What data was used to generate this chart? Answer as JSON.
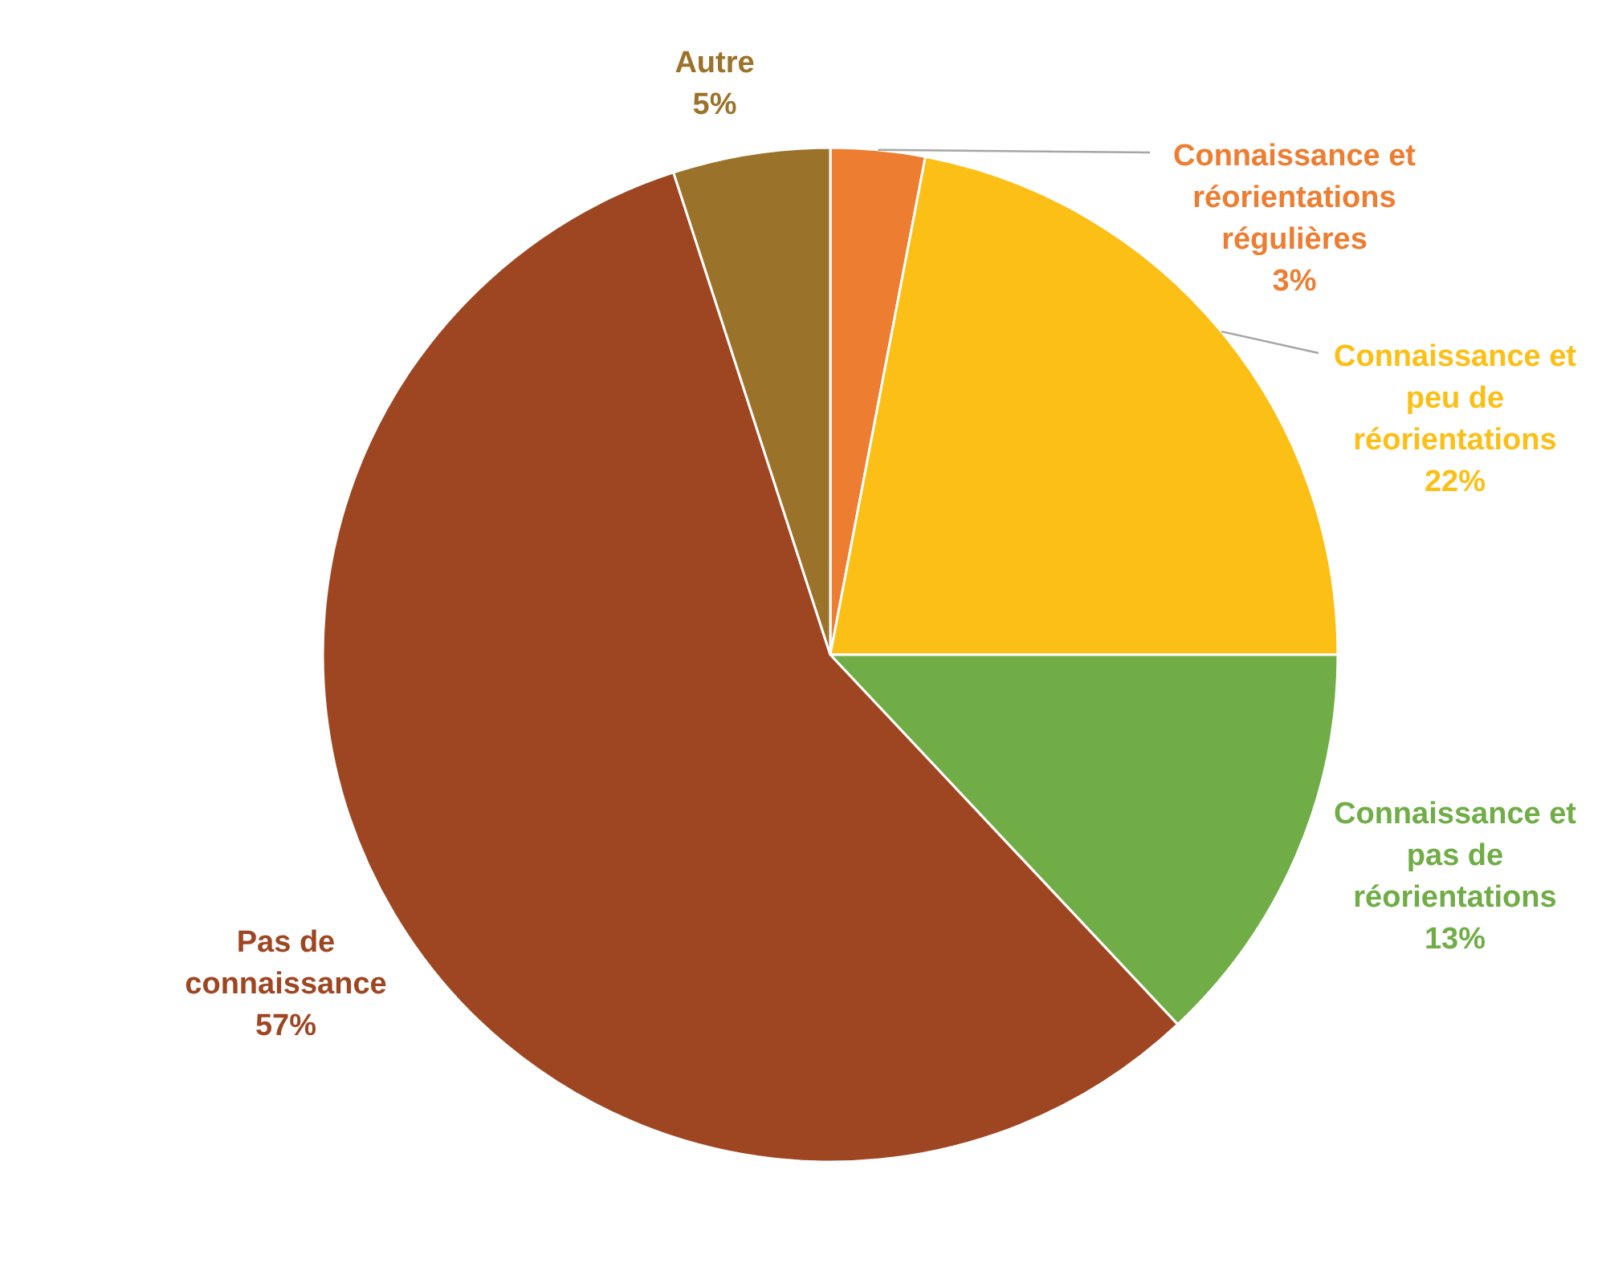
{
  "chart_data": {
    "type": "pie",
    "categories": [
      "Connaissance et réorientations régulières",
      "Connaissance et peu de réorientations",
      "Connaissance et pas de réorientations",
      "Pas de connaissance",
      "Autre"
    ],
    "values": [
      3,
      22,
      13,
      57,
      5
    ],
    "value_labels": [
      "3%",
      "22%",
      "13%",
      "57%",
      "5%"
    ],
    "colors": [
      "#ed7d31",
      "#fbbf16",
      "#70ad47",
      "#9e4622",
      "#9b722a"
    ]
  }
}
